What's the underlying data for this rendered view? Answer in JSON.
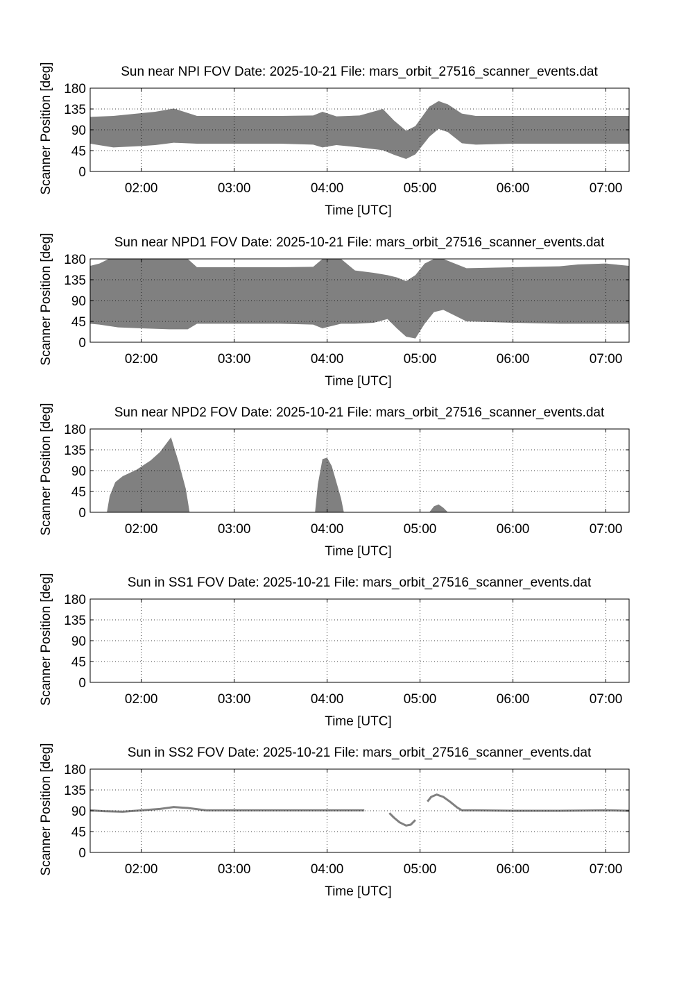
{
  "chart_data": [
    {
      "type": "area",
      "title": "Sun near NPI FOV   Date: 2025-10-21   File: mars_orbit_27516_scanner_events.dat",
      "xlabel": "Time [UTC]",
      "ylabel": "Scanner Position [deg]",
      "xlim": [
        1.45,
        7.25
      ],
      "ylim": [
        0,
        180
      ],
      "grid": true,
      "xticks": [
        "02:00",
        "03:00",
        "04:00",
        "05:00",
        "06:00",
        "07:00"
      ],
      "yticks": [
        "0",
        "45",
        "90",
        "135",
        "180"
      ],
      "color": "#808080",
      "series": [
        {
          "x": [
            1.45,
            1.7,
            2.0,
            2.15,
            2.35,
            2.6,
            3.0,
            3.5,
            3.85,
            3.95,
            4.1,
            4.35,
            4.6,
            4.72,
            4.85,
            4.95,
            5.1,
            5.2,
            5.3,
            5.45,
            5.6,
            6.0,
            6.5,
            7.0,
            7.25
          ],
          "upper": [
            118,
            120,
            126,
            129,
            136,
            120,
            120,
            120,
            121,
            129,
            119,
            121,
            135,
            110,
            88,
            98,
            140,
            152,
            145,
            125,
            120,
            120,
            120,
            120,
            120
          ],
          "lower": [
            60,
            52,
            55,
            57,
            62,
            60,
            60,
            60,
            58,
            52,
            57,
            52,
            46,
            36,
            27,
            37,
            75,
            92,
            85,
            61,
            58,
            60,
            60,
            60,
            60
          ]
        }
      ]
    },
    {
      "type": "area",
      "title": "Sun near NPD1 FOV   Date: 2025-10-21   File: mars_orbit_27516_scanner_events.dat",
      "xlabel": "Time [UTC]",
      "ylabel": "Scanner Position [deg]",
      "xlim": [
        1.45,
        7.25
      ],
      "ylim": [
        0,
        180
      ],
      "grid": true,
      "xticks": [
        "02:00",
        "03:00",
        "04:00",
        "05:00",
        "06:00",
        "07:00"
      ],
      "yticks": [
        "0",
        "45",
        "90",
        "135",
        "180"
      ],
      "color": "#808080",
      "series": [
        {
          "x": [
            1.45,
            1.55,
            1.65,
            1.75,
            2.0,
            2.3,
            2.5,
            2.6,
            3.0,
            3.5,
            3.85,
            3.95,
            4.05,
            4.15,
            4.3,
            4.5,
            4.65,
            4.75,
            4.85,
            4.95,
            5.05,
            5.15,
            5.25,
            5.35,
            5.5,
            6.0,
            6.5,
            6.7,
            7.0,
            7.1,
            7.25
          ],
          "upper": [
            165,
            170,
            180,
            180,
            180,
            180,
            180,
            162,
            162,
            162,
            163,
            180,
            180,
            180,
            155,
            150,
            145,
            140,
            132,
            145,
            170,
            180,
            180,
            172,
            160,
            162,
            164,
            168,
            170,
            168,
            165
          ],
          "lower": [
            40,
            38,
            35,
            32,
            30,
            28,
            28,
            40,
            40,
            40,
            38,
            30,
            35,
            40,
            40,
            42,
            50,
            30,
            12,
            8,
            40,
            65,
            70,
            60,
            45,
            42,
            40,
            40,
            40,
            40,
            40
          ]
        }
      ]
    },
    {
      "type": "area",
      "title": "Sun near NPD2 FOV   Date: 2025-10-21   File: mars_orbit_27516_scanner_events.dat",
      "xlabel": "Time [UTC]",
      "ylabel": "Scanner Position [deg]",
      "xlim": [
        1.45,
        7.25
      ],
      "ylim": [
        0,
        180
      ],
      "grid": true,
      "xticks": [
        "02:00",
        "03:00",
        "04:00",
        "05:00",
        "06:00",
        "07:00"
      ],
      "yticks": [
        "0",
        "45",
        "90",
        "135",
        "180"
      ],
      "color": "#808080",
      "series": [
        {
          "x": [
            1.63,
            1.66,
            1.72,
            1.8,
            1.95,
            2.1,
            2.2,
            2.32,
            2.4,
            2.48,
            2.52
          ],
          "upper": [
            0,
            35,
            65,
            78,
            92,
            112,
            130,
            162,
            110,
            50,
            0
          ],
          "lower": [
            0,
            0,
            0,
            0,
            0,
            0,
            0,
            0,
            0,
            0,
            0
          ]
        },
        {
          "x": [
            3.87,
            3.9,
            3.95,
            4.0,
            4.05,
            4.1,
            4.15,
            4.18
          ],
          "upper": [
            0,
            60,
            115,
            118,
            100,
            65,
            30,
            0
          ],
          "lower": [
            0,
            0,
            0,
            0,
            0,
            0,
            0,
            0
          ]
        },
        {
          "x": [
            5.1,
            5.15,
            5.2,
            5.25,
            5.3
          ],
          "upper": [
            0,
            13,
            17,
            10,
            0
          ],
          "lower": [
            0,
            0,
            0,
            0,
            0
          ]
        }
      ]
    },
    {
      "type": "area",
      "title": "Sun in SS1 FOV   Date: 2025-10-21   File: mars_orbit_27516_scanner_events.dat",
      "xlabel": "Time [UTC]",
      "ylabel": "Scanner Position [deg]",
      "xlim": [
        1.45,
        7.25
      ],
      "ylim": [
        0,
        180
      ],
      "grid": true,
      "xticks": [
        "02:00",
        "03:00",
        "04:00",
        "05:00",
        "06:00",
        "07:00"
      ],
      "yticks": [
        "0",
        "45",
        "90",
        "135",
        "180"
      ],
      "color": "#808080",
      "series": []
    },
    {
      "type": "line",
      "title": "Sun in SS2 FOV   Date: 2025-10-21   File: mars_orbit_27516_scanner_events.dat",
      "xlabel": "Time [UTC]",
      "ylabel": "Scanner Position [deg]",
      "xlim": [
        1.45,
        7.25
      ],
      "ylim": [
        0,
        180
      ],
      "grid": true,
      "xticks": [
        "02:00",
        "03:00",
        "04:00",
        "05:00",
        "06:00",
        "07:00"
      ],
      "yticks": [
        "0",
        "45",
        "90",
        "135",
        "180"
      ],
      "color": "#808080",
      "series": [
        {
          "x": [
            1.45,
            1.6,
            1.8,
            2.0,
            2.2,
            2.35,
            2.5,
            2.7,
            3.0,
            3.5,
            4.0,
            4.4
          ],
          "y": [
            91,
            89,
            88,
            91,
            94,
            98,
            96,
            91,
            91,
            91,
            91,
            91
          ]
        },
        {
          "x": [
            4.67,
            4.72,
            4.78,
            4.85,
            4.9,
            4.95
          ],
          "y": [
            85,
            75,
            65,
            58,
            60,
            70
          ]
        },
        {
          "x": [
            5.08,
            5.12,
            5.18,
            5.25,
            5.32,
            5.4,
            5.45,
            5.6,
            6.0,
            6.5,
            7.0,
            7.25
          ],
          "y": [
            110,
            120,
            125,
            120,
            110,
            97,
            91,
            91,
            90,
            90,
            91,
            90
          ]
        }
      ]
    }
  ]
}
